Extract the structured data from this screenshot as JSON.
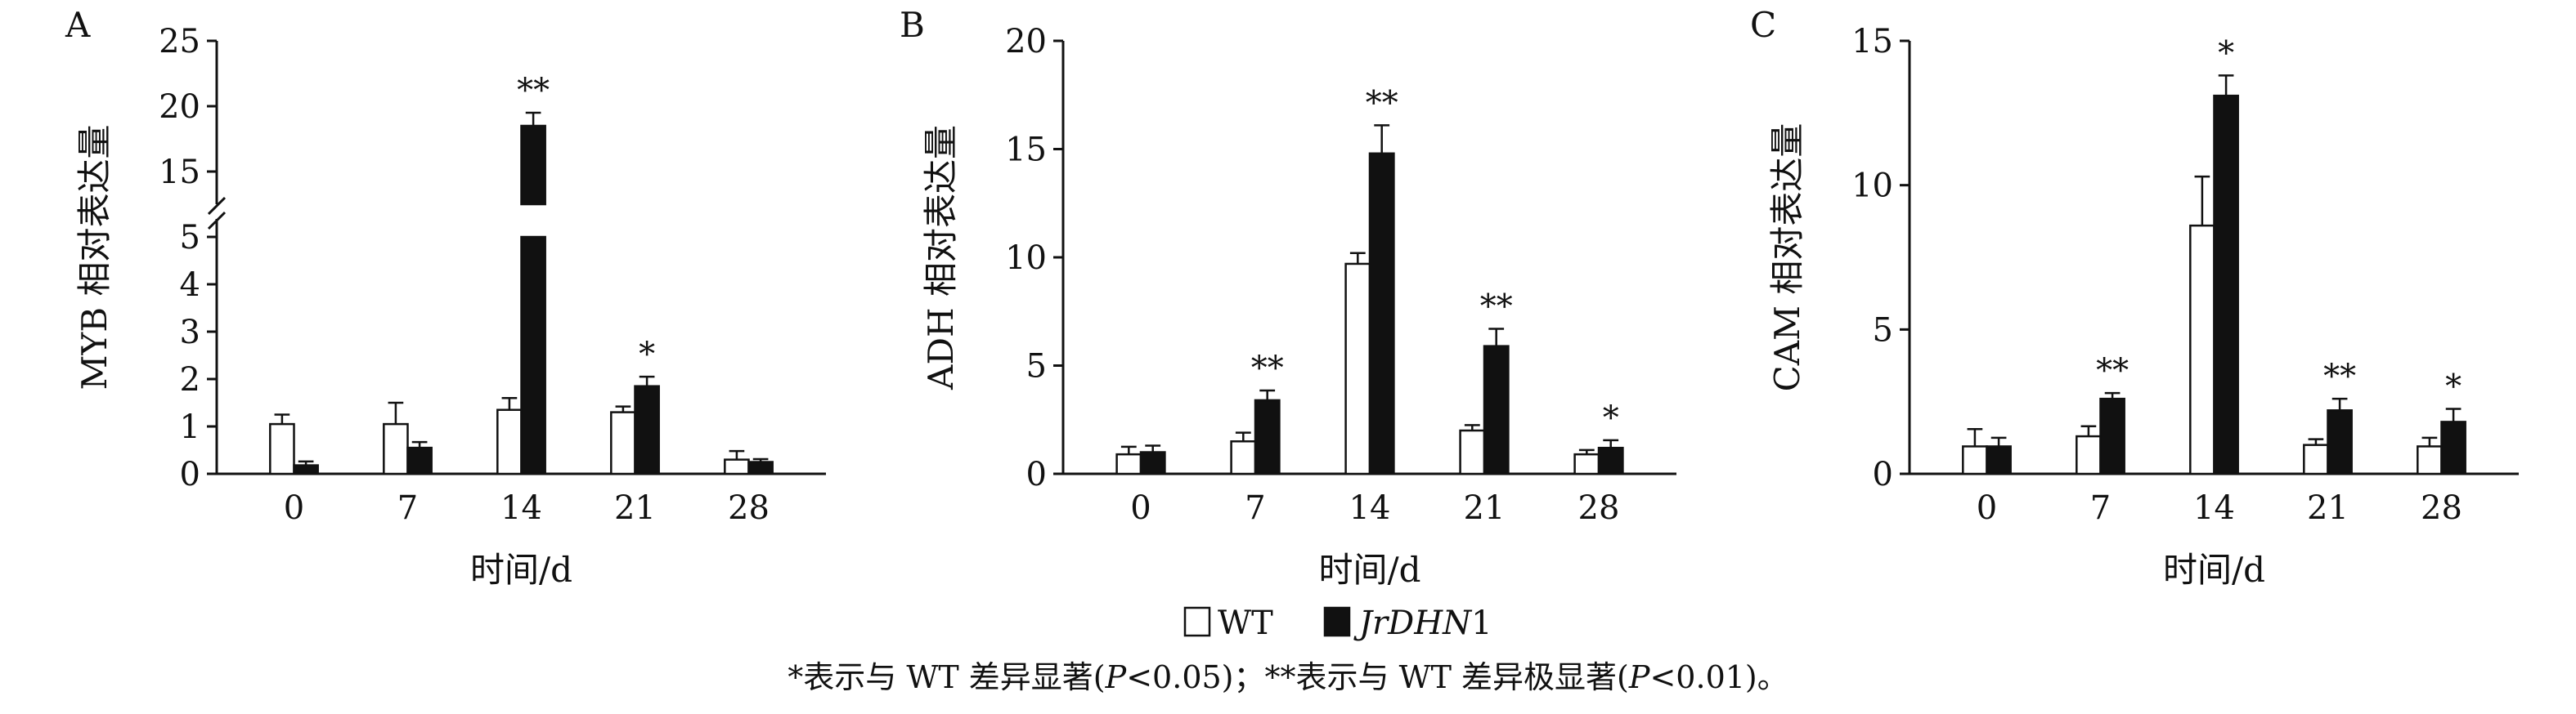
{
  "chart_data": [
    {
      "type": "bar",
      "panel": "A",
      "ylabel": "MYB 相对表达量",
      "xlabel": "时间/d",
      "categories": [
        "0",
        "7",
        "14",
        "21",
        "28"
      ],
      "y_axis": "broken",
      "y_lower_ticks": [
        "0",
        "1",
        "2",
        "3",
        "4",
        "5"
      ],
      "y_upper_ticks": [
        "15",
        "20",
        "25"
      ],
      "ylim_lower": [
        0,
        5
      ],
      "ylim_upper": [
        12.5,
        25
      ],
      "series": [
        {
          "name": "WT",
          "values": [
            1.05,
            1.05,
            1.35,
            1.3,
            0.3
          ],
          "errors": [
            0.2,
            0.45,
            0.25,
            0.12,
            0.18
          ]
        },
        {
          "name": "JrDHN1",
          "values": [
            0.18,
            0.55,
            18.5,
            1.85,
            0.25
          ],
          "errors": [
            0.08,
            0.12,
            1.0,
            0.2,
            0.06
          ]
        }
      ],
      "significance": [
        "",
        "",
        "**",
        "*",
        ""
      ]
    },
    {
      "type": "bar",
      "panel": "B",
      "ylabel": "ADH 相对表达量",
      "xlabel": "时间/d",
      "categories": [
        "0",
        "7",
        "14",
        "21",
        "28"
      ],
      "ylim": [
        0,
        20
      ],
      "y_ticks": [
        "0",
        "5",
        "10",
        "15",
        "20"
      ],
      "series": [
        {
          "name": "WT",
          "values": [
            0.9,
            1.5,
            9.7,
            2.0,
            0.9
          ],
          "errors": [
            0.35,
            0.4,
            0.5,
            0.25,
            0.2
          ]
        },
        {
          "name": "JrDHN1",
          "values": [
            1.0,
            3.4,
            14.8,
            5.9,
            1.2
          ],
          "errors": [
            0.3,
            0.45,
            1.3,
            0.8,
            0.35
          ]
        }
      ],
      "significance": [
        "",
        "**",
        "**",
        "**",
        "*"
      ]
    },
    {
      "type": "bar",
      "panel": "C",
      "ylabel": "CAM 相对表达量",
      "xlabel": "时间/d",
      "categories": [
        "0",
        "7",
        "14",
        "21",
        "28"
      ],
      "ylim": [
        0,
        15
      ],
      "y_ticks": [
        "0",
        "5",
        "10",
        "15"
      ],
      "series": [
        {
          "name": "WT",
          "values": [
            0.95,
            1.3,
            8.6,
            1.0,
            0.95
          ],
          "errors": [
            0.6,
            0.35,
            1.7,
            0.2,
            0.3
          ]
        },
        {
          "name": "JrDHN1",
          "values": [
            0.95,
            2.6,
            13.1,
            2.2,
            1.8
          ],
          "errors": [
            0.3,
            0.2,
            0.7,
            0.4,
            0.45
          ]
        }
      ],
      "significance": [
        "",
        "**",
        "*",
        "**",
        "*"
      ]
    }
  ],
  "legend": {
    "wt_label": "WT",
    "mutant_label_italic": "JrDHN",
    "mutant_label_suffix": "1"
  },
  "footnote": {
    "part1": "*表示与 WT 差异显著(",
    "p_symbol": "P",
    "part2": "<0.05)；**表示与 WT 差异极显著(",
    "part3": "<0.01)。"
  },
  "colors": {
    "wt_fill": "#ffffff",
    "mutant_fill": "#111111",
    "axis": "#111111"
  }
}
